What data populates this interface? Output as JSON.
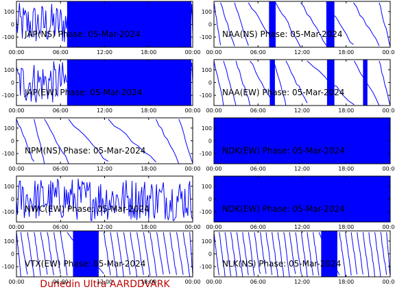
{
  "figure": {
    "footer": "Dunedin Ultra AARDDVARK",
    "colors": {
      "trace": "#0000ff",
      "axis": "#000000",
      "footer": "#c00000"
    }
  },
  "chart_data": [
    {
      "type": "line",
      "title": "JAP(NS) Phase: 05-Mar-2024",
      "ylim": [
        -180,
        180
      ],
      "yticks": [
        "100",
        "0",
        "-100"
      ],
      "xticks": [
        "00:00",
        "06:00",
        "12:00",
        "18:00",
        "00:00"
      ],
      "grid": false,
      "fill_range": [
        [
          6.9,
          23.8
        ]
      ],
      "wrap_times": []
    },
    {
      "type": "line",
      "title": "NAA(NS) Phase: 05-Mar-2024",
      "ylim": [
        -180,
        180
      ],
      "yticks": [
        "100",
        "0",
        "-100"
      ],
      "xticks": [
        "00:00",
        "06:00",
        "12:00",
        "18:00",
        "00:00"
      ],
      "grid": false,
      "fill_range": [
        [
          7.5,
          8.4
        ],
        [
          15.3,
          16.4
        ]
      ],
      "wrap_times": [
        0.9,
        2.8,
        4.7,
        8.4,
        11.8,
        15.3,
        19.0,
        22.5
      ]
    },
    {
      "type": "line",
      "title": "JAP(EW) Phase: 05-Mar-2024",
      "ylim": [
        -180,
        180
      ],
      "yticks": [
        "100",
        "0",
        "-100"
      ],
      "xticks": [
        "00:00",
        "06:00",
        "12:00",
        "18:00",
        "00:00"
      ],
      "grid": false,
      "fill_range": [
        [
          6.9,
          23.8
        ]
      ],
      "wrap_times": []
    },
    {
      "type": "line",
      "title": "NAA(EW) Phase: 05-Mar-2024",
      "ylim": [
        -180,
        180
      ],
      "yticks": [
        "100",
        "0",
        "-100"
      ],
      "xticks": [
        "00:00",
        "06:00",
        "12:00",
        "18:00",
        "00:00"
      ],
      "grid": false,
      "fill_range": [
        [
          7.6,
          8.3
        ],
        [
          15.4,
          16.4
        ],
        [
          20.3,
          20.9
        ]
      ],
      "wrap_times": [
        1.3,
        3.0,
        4.9,
        8.1,
        9.8,
        12.7,
        19.1,
        22.5
      ]
    },
    {
      "type": "line",
      "title": "NPM(NS) Phase: 05-Mar-2024",
      "ylim": [
        -180,
        180
      ],
      "yticks": [
        "100",
        "0",
        "-100"
      ],
      "xticks": [
        "00:00",
        "06:00",
        "12:00",
        "18:00",
        "00:00"
      ],
      "grid": false,
      "fill_range": [],
      "wrap_times": [
        2.4,
        3.8,
        7.1,
        12.5,
        19.0,
        22.1
      ]
    },
    {
      "type": "line",
      "title": "NDK(EW) Phase: 05-Mar-2024",
      "ylim": [
        -180,
        180
      ],
      "yticks": [
        "100",
        "0",
        "-100"
      ],
      "xticks": [
        "00:00",
        "06:00",
        "12:00",
        "18:00",
        "00:00"
      ],
      "grid": false,
      "fill_range": [
        [
          0.0,
          24.0
        ]
      ],
      "wrap_times": []
    },
    {
      "type": "line",
      "title": "NWC(EW) Phase: 05-Mar-2024",
      "ylim": [
        -180,
        180
      ],
      "yticks": [
        "100",
        "0",
        "-100"
      ],
      "xticks": [
        "00:00",
        "06:00",
        "12:00",
        "18:00",
        "00:00"
      ],
      "grid": false,
      "fill_range": [],
      "wrap_times": []
    },
    {
      "type": "line",
      "title": "NDK(EW) Phase: 05-Mar-2024",
      "ylim": [
        -180,
        180
      ],
      "yticks": [
        "100",
        "0",
        "-100"
      ],
      "xticks": [
        "00:00",
        "06:00",
        "12:00",
        "18:00",
        "00:00"
      ],
      "grid": false,
      "fill_range": [
        [
          0.0,
          24.0
        ]
      ],
      "wrap_times": []
    },
    {
      "type": "line",
      "title": "VTX(EW) Phase: 05-Mar-2024",
      "ylim": [
        -180,
        180
      ],
      "yticks": [
        "100",
        "0",
        "-100"
      ],
      "xticks": [
        "00:00",
        "06:00",
        "12:00",
        "18:00",
        "00:00"
      ],
      "grid": false,
      "fill_range": [
        [
          7.7,
          11.2
        ]
      ],
      "wrap_times": [
        0.6,
        1.5,
        2.4,
        3.3,
        4.2,
        5.1,
        6.0,
        6.9,
        11.9,
        12.8,
        13.7,
        14.6,
        15.5,
        16.4,
        17.3,
        18.2,
        19.1,
        20.0,
        20.9,
        21.8,
        22.7,
        23.6
      ]
    },
    {
      "type": "line",
      "title": "NLK(NS) Phase: 05-Mar-2024",
      "ylim": [
        -180,
        180
      ],
      "yticks": [
        "100",
        "0",
        "-100"
      ],
      "xticks": [
        "00:00",
        "06:00",
        "12:00",
        "18:00",
        "00:00"
      ],
      "grid": false,
      "fill_range": [
        [
          14.6,
          16.8
        ]
      ],
      "wrap_times": [
        0.7,
        1.5,
        2.3,
        3.1,
        3.9,
        4.7,
        5.5,
        6.3,
        7.1,
        7.9,
        8.7,
        9.5,
        10.3,
        11.1,
        11.9,
        12.7,
        13.5,
        14.3,
        17.1,
        17.9,
        18.7,
        19.5,
        20.3,
        21.1,
        21.9,
        22.7,
        23.5
      ]
    }
  ]
}
